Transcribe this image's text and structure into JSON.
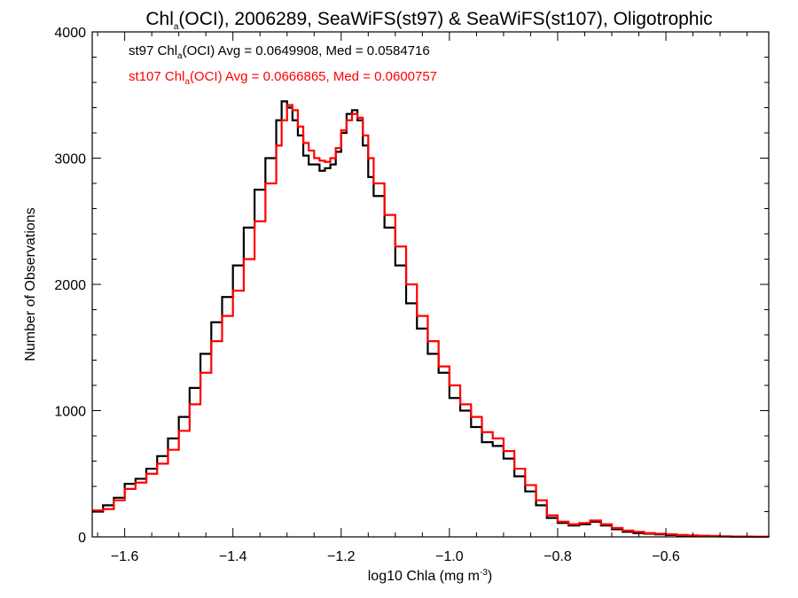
{
  "chart_data": {
    "type": "line",
    "title": {
      "prefix": "Chl",
      "subscript": "a",
      "suffix": "(OCI), 2006289, SeaWiFS(st97) & SeaWiFS(st107), Oligotrophic"
    },
    "xlabel": {
      "main": "log10 Chla (mg m",
      "superscript": "-3",
      "close": ")"
    },
    "ylabel": "Number of Observations",
    "xlim": [
      -1.66,
      -0.41
    ],
    "ylim": [
      0,
      4000
    ],
    "x_ticks": [
      -1.6,
      -1.4,
      -1.2,
      -1.0,
      -0.8,
      -0.6
    ],
    "x_tick_labels": [
      "−1.6",
      "−1.4",
      "−1.2",
      "−1.0",
      "−0.8",
      "−0.6"
    ],
    "y_ticks": [
      0,
      1000,
      2000,
      3000,
      4000
    ],
    "y_tick_labels": [
      "0",
      "1000",
      "2000",
      "3000",
      "4000"
    ],
    "legend": [
      {
        "prefix": "st97 Chl",
        "subscript": "a",
        "suffix": "(OCI) Avg = 0.0649908, Med = 0.0584716",
        "color": "#000000"
      },
      {
        "prefix": "st107 Chl",
        "subscript": "a",
        "suffix": "(OCI) Avg = 0.0666865, Med = 0.0600757",
        "color": "#ff0000"
      }
    ],
    "legend_position": "top-left",
    "grid": false,
    "series": [
      {
        "color": "#000000",
        "points": [
          [
            -1.66,
            200
          ],
          [
            -1.64,
            250
          ],
          [
            -1.62,
            310
          ],
          [
            -1.6,
            420
          ],
          [
            -1.58,
            460
          ],
          [
            -1.56,
            540
          ],
          [
            -1.54,
            640
          ],
          [
            -1.52,
            780
          ],
          [
            -1.5,
            950
          ],
          [
            -1.48,
            1180
          ],
          [
            -1.46,
            1450
          ],
          [
            -1.44,
            1700
          ],
          [
            -1.42,
            1900
          ],
          [
            -1.4,
            2150
          ],
          [
            -1.38,
            2450
          ],
          [
            -1.36,
            2750
          ],
          [
            -1.34,
            3000
          ],
          [
            -1.32,
            3300
          ],
          [
            -1.31,
            3450
          ],
          [
            -1.3,
            3400
          ],
          [
            -1.29,
            3300
          ],
          [
            -1.28,
            3180
          ],
          [
            -1.27,
            3020
          ],
          [
            -1.26,
            2950
          ],
          [
            -1.25,
            2950
          ],
          [
            -1.24,
            2900
          ],
          [
            -1.23,
            2920
          ],
          [
            -1.22,
            2950
          ],
          [
            -1.21,
            3050
          ],
          [
            -1.2,
            3200
          ],
          [
            -1.19,
            3350
          ],
          [
            -1.18,
            3380
          ],
          [
            -1.17,
            3300
          ],
          [
            -1.16,
            3100
          ],
          [
            -1.15,
            2850
          ],
          [
            -1.14,
            2700
          ],
          [
            -1.12,
            2450
          ],
          [
            -1.1,
            2150
          ],
          [
            -1.08,
            1850
          ],
          [
            -1.06,
            1650
          ],
          [
            -1.04,
            1450
          ],
          [
            -1.02,
            1300
          ],
          [
            -1.0,
            1100
          ],
          [
            -0.98,
            1000
          ],
          [
            -0.96,
            870
          ],
          [
            -0.94,
            750
          ],
          [
            -0.92,
            720
          ],
          [
            -0.9,
            620
          ],
          [
            -0.88,
            480
          ],
          [
            -0.86,
            360
          ],
          [
            -0.84,
            250
          ],
          [
            -0.82,
            150
          ],
          [
            -0.8,
            110
          ],
          [
            -0.78,
            90
          ],
          [
            -0.76,
            100
          ],
          [
            -0.74,
            120
          ],
          [
            -0.72,
            90
          ],
          [
            -0.7,
            60
          ],
          [
            -0.68,
            40
          ],
          [
            -0.66,
            30
          ],
          [
            -0.64,
            25
          ],
          [
            -0.62,
            20
          ],
          [
            -0.6,
            15
          ],
          [
            -0.58,
            10
          ],
          [
            -0.56,
            8
          ],
          [
            -0.54,
            6
          ],
          [
            -0.52,
            4
          ],
          [
            -0.5,
            3
          ],
          [
            -0.48,
            2
          ],
          [
            -0.46,
            1
          ],
          [
            -0.44,
            0
          ],
          [
            -0.41,
            0
          ]
        ]
      },
      {
        "color": "#ff0000",
        "points": [
          [
            -1.66,
            210
          ],
          [
            -1.64,
            220
          ],
          [
            -1.62,
            290
          ],
          [
            -1.6,
            380
          ],
          [
            -1.58,
            430
          ],
          [
            -1.56,
            500
          ],
          [
            -1.54,
            580
          ],
          [
            -1.52,
            690
          ],
          [
            -1.5,
            840
          ],
          [
            -1.48,
            1050
          ],
          [
            -1.46,
            1300
          ],
          [
            -1.44,
            1550
          ],
          [
            -1.42,
            1750
          ],
          [
            -1.4,
            1950
          ],
          [
            -1.38,
            2200
          ],
          [
            -1.36,
            2500
          ],
          [
            -1.34,
            2800
          ],
          [
            -1.32,
            3100
          ],
          [
            -1.31,
            3300
          ],
          [
            -1.3,
            3420
          ],
          [
            -1.29,
            3380
          ],
          [
            -1.28,
            3250
          ],
          [
            -1.27,
            3120
          ],
          [
            -1.26,
            3060
          ],
          [
            -1.25,
            3000
          ],
          [
            -1.24,
            2980
          ],
          [
            -1.23,
            2970
          ],
          [
            -1.22,
            3000
          ],
          [
            -1.21,
            3080
          ],
          [
            -1.2,
            3220
          ],
          [
            -1.19,
            3300
          ],
          [
            -1.18,
            3350
          ],
          [
            -1.17,
            3320
          ],
          [
            -1.16,
            3180
          ],
          [
            -1.15,
            3000
          ],
          [
            -1.14,
            2800
          ],
          [
            -1.12,
            2550
          ],
          [
            -1.1,
            2300
          ],
          [
            -1.08,
            2000
          ],
          [
            -1.06,
            1750
          ],
          [
            -1.04,
            1550
          ],
          [
            -1.02,
            1350
          ],
          [
            -1.0,
            1200
          ],
          [
            -0.98,
            1050
          ],
          [
            -0.96,
            950
          ],
          [
            -0.94,
            830
          ],
          [
            -0.92,
            780
          ],
          [
            -0.9,
            680
          ],
          [
            -0.88,
            540
          ],
          [
            -0.86,
            410
          ],
          [
            -0.84,
            290
          ],
          [
            -0.82,
            170
          ],
          [
            -0.8,
            120
          ],
          [
            -0.78,
            100
          ],
          [
            -0.76,
            110
          ],
          [
            -0.74,
            130
          ],
          [
            -0.72,
            100
          ],
          [
            -0.7,
            70
          ],
          [
            -0.68,
            50
          ],
          [
            -0.66,
            40
          ],
          [
            -0.64,
            30
          ],
          [
            -0.62,
            25
          ],
          [
            -0.6,
            20
          ],
          [
            -0.58,
            15
          ],
          [
            -0.56,
            12
          ],
          [
            -0.54,
            9
          ],
          [
            -0.52,
            7
          ],
          [
            -0.5,
            5
          ],
          [
            -0.48,
            3
          ],
          [
            -0.46,
            2
          ],
          [
            -0.44,
            1
          ],
          [
            -0.41,
            0
          ]
        ]
      }
    ]
  }
}
